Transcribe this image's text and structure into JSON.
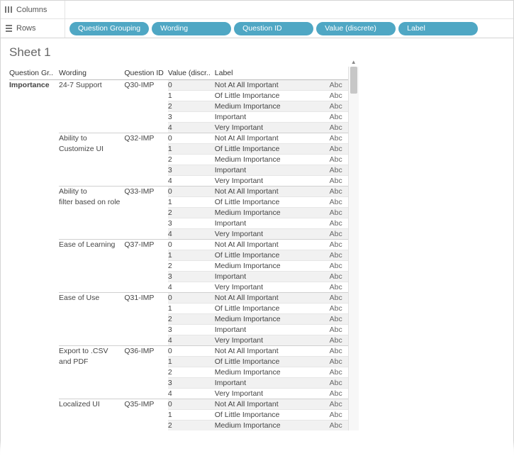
{
  "colors": {
    "pill_bg": "#4fa7c4",
    "pill_text": "#ffffff",
    "shade_bg": "#f1f1f1",
    "border": "#d4d4d4",
    "text": "#333333"
  },
  "shelves": {
    "columns": {
      "label": "Columns",
      "pills": []
    },
    "rows": {
      "label": "Rows",
      "pills": [
        "Question Grouping",
        "Wording",
        "Question ID",
        "Value (discrete)",
        "Label"
      ]
    }
  },
  "sheet": {
    "title": "Sheet 1",
    "headers": {
      "group": "Question Gr..",
      "wording": "Wording",
      "qid": "Question ID",
      "value": "Value (discr..",
      "label": "Label"
    },
    "abc_text": "Abc",
    "group_label": "Importance",
    "value_labels": [
      "Not At All Important",
      "Of Little Importance",
      "Medium Importance",
      "Important",
      "Very Important"
    ],
    "wordings": [
      {
        "text": "24-7 Support",
        "qid": "Q30-IMP",
        "shade_start": 1
      },
      {
        "text": "Ability to Customize UI",
        "qid": "Q32-IMP",
        "shade_start": 0
      },
      {
        "text": "Ability to filter based on role",
        "qid": "Q33-IMP",
        "shade_start": 1
      },
      {
        "text": "Ease of Learning",
        "qid": "Q37-IMP",
        "shade_start": 0
      },
      {
        "text": "Ease of Use",
        "qid": "Q31-IMP",
        "shade_start": 1
      },
      {
        "text": "Export to .CSV and PDF",
        "qid": "Q36-IMP",
        "shade_start": 0
      },
      {
        "text": "Localized UI",
        "qid": "Q35-IMP",
        "shade_start": 1
      }
    ]
  }
}
